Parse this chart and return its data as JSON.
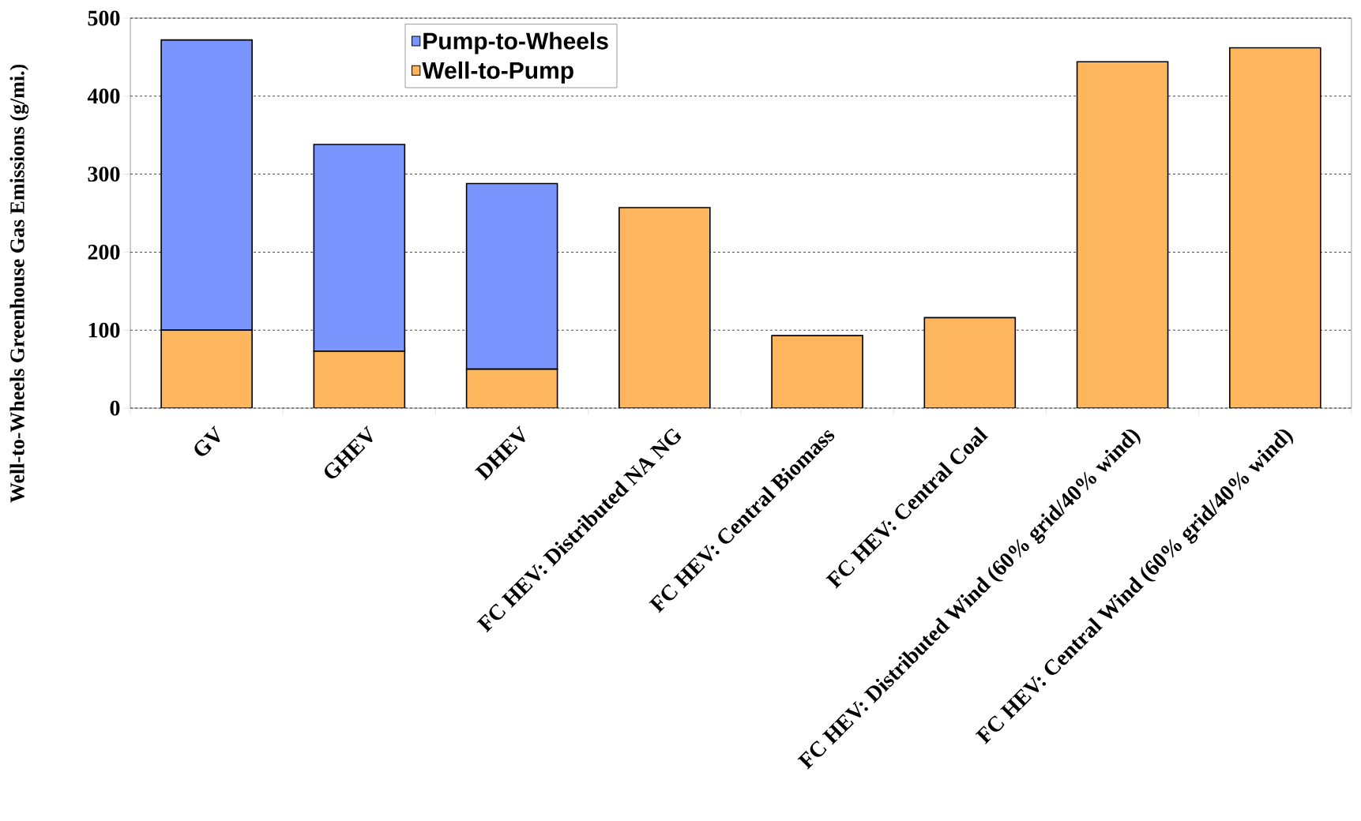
{
  "chart_data": {
    "type": "bar",
    "stacked": true,
    "ylabel": "Well-to-Wheels Greenhouse Gas Emissions (g/mi.)",
    "categories": [
      "GV",
      "GHEV",
      "DHEV",
      "FC HEV: Distributed NA NG",
      "FC HEV: Central Biomass",
      "FC HEV: Central Coal",
      "FC HEV: Distributed Wind (60% grid/40% wind)",
      "FC HEV: Central Wind (60% grid/40% wind)"
    ],
    "series": [
      {
        "name": "Well-to-Pump",
        "color": "#fdb55e",
        "values": [
          100,
          73,
          50,
          257,
          93,
          116,
          444,
          462
        ]
      },
      {
        "name": "Pump-to-Wheels",
        "color": "#7b95ff",
        "values": [
          372,
          265,
          238,
          null,
          null,
          null,
          null,
          null
        ]
      }
    ],
    "ylim": [
      0,
      500
    ],
    "yticks": [
      0,
      100,
      200,
      300,
      400,
      500
    ],
    "grid": "y",
    "legend": "top"
  }
}
